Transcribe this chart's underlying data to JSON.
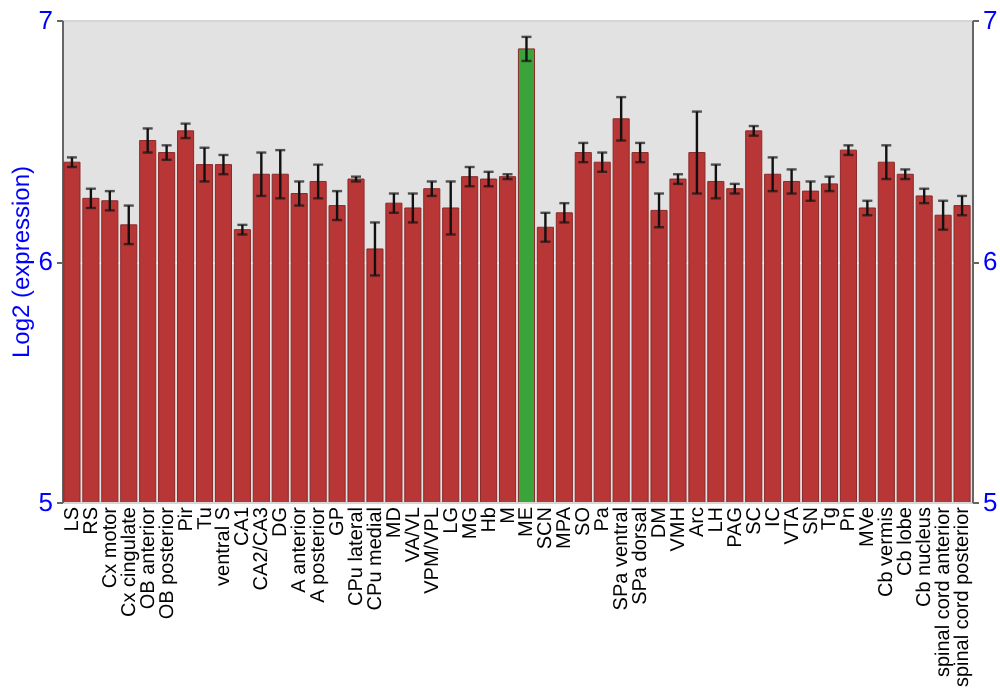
{
  "chart_data": {
    "type": "bar",
    "ylabel": "Log2 (expression)",
    "categories": [
      "LS",
      "RS",
      "Cx motor",
      "Cx cingulate",
      "OB anterior",
      "OB posterior",
      "Pir",
      "Tu",
      "ventral S",
      "CA1",
      "CA2/CA3",
      "DG",
      "A anterior",
      "A posterior",
      "GP",
      "CPu lateral",
      "CPu medial",
      "MD",
      "VA/VL",
      "VPM/VPL",
      "LG",
      "MG",
      "Hb",
      "M",
      "ME",
      "SCN",
      "MPA",
      "SO",
      "Pa",
      "SPa ventral",
      "SPa dorsal",
      "DM",
      "VMH",
      "Arc",
      "LH",
      "PAG",
      "SC",
      "IC",
      "VTA",
      "SN",
      "Tg",
      "Pn",
      "MVe",
      "Cb vermis",
      "Cb lobe",
      "Cb nucleus",
      "spinal cord anterior",
      "spinal cord posterior"
    ],
    "values": [
      6.41,
      6.26,
      6.25,
      6.15,
      6.5,
      6.45,
      6.54,
      6.4,
      6.4,
      6.13,
      6.36,
      6.36,
      6.28,
      6.33,
      6.23,
      6.34,
      6.05,
      6.24,
      6.22,
      6.3,
      6.22,
      6.35,
      6.34,
      6.35,
      6.88,
      6.14,
      6.2,
      6.45,
      6.41,
      6.59,
      6.45,
      6.21,
      6.34,
      6.45,
      6.33,
      6.3,
      6.54,
      6.36,
      6.33,
      6.29,
      6.32,
      6.46,
      6.22,
      6.41,
      6.36,
      6.27,
      6.19,
      6.23
    ],
    "errors": [
      0.02,
      0.04,
      0.04,
      0.08,
      0.05,
      0.03,
      0.03,
      0.07,
      0.04,
      0.02,
      0.09,
      0.1,
      0.05,
      0.07,
      0.06,
      0.01,
      0.11,
      0.04,
      0.06,
      0.03,
      0.11,
      0.04,
      0.03,
      0.01,
      0.05,
      0.06,
      0.04,
      0.04,
      0.04,
      0.09,
      0.04,
      0.07,
      0.02,
      0.17,
      0.07,
      0.02,
      0.02,
      0.07,
      0.05,
      0.04,
      0.03,
      0.02,
      0.03,
      0.07,
      0.02,
      0.03,
      0.06,
      0.04
    ],
    "colors": [
      "#b83636",
      "#b83636",
      "#b83636",
      "#b83636",
      "#b83636",
      "#b83636",
      "#b83636",
      "#b83636",
      "#b83636",
      "#b83636",
      "#b83636",
      "#b83636",
      "#b83636",
      "#b83636",
      "#b83636",
      "#b83636",
      "#b83636",
      "#b83636",
      "#b83636",
      "#b83636",
      "#b83636",
      "#b83636",
      "#b83636",
      "#b83636",
      "#3aa33a",
      "#b83636",
      "#b83636",
      "#b83636",
      "#b83636",
      "#b83636",
      "#b83636",
      "#b83636",
      "#b83636",
      "#b83636",
      "#b83636",
      "#b83636",
      "#b83636",
      "#b83636",
      "#b83636",
      "#b83636",
      "#b83636",
      "#b83636",
      "#b83636",
      "#b83636",
      "#b83636",
      "#b83636",
      "#b83636",
      "#b83636"
    ],
    "ylim": [
      5,
      7
    ],
    "yticks": [
      5,
      6,
      7
    ],
    "y2lim": [
      5,
      7
    ],
    "y2ticks": [
      5,
      6,
      7
    ],
    "grid": "y"
  }
}
